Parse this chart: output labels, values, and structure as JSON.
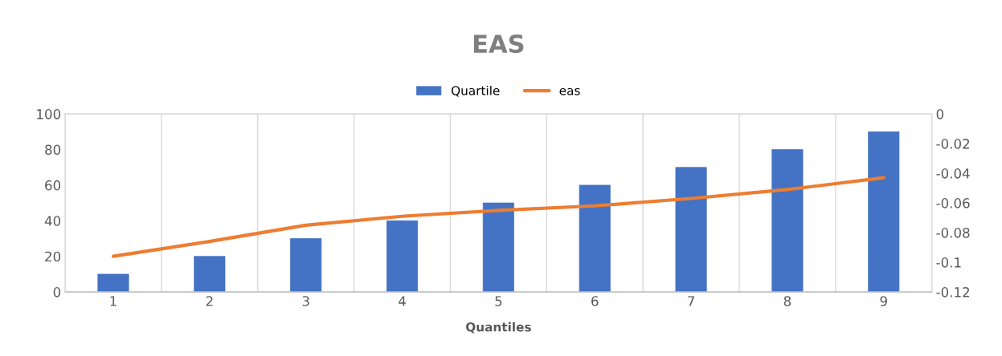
{
  "chart_data": {
    "type": "bar",
    "title": "EAS",
    "xlabel": "Quantiles",
    "categories": [
      "1",
      "2",
      "3",
      "4",
      "5",
      "6",
      "7",
      "8",
      "9"
    ],
    "series": [
      {
        "name": "Quartile",
        "color": "#4472c4",
        "values": [
          10,
          20,
          30,
          40,
          50,
          60,
          70,
          80,
          90
        ]
      },
      {
        "name": "eas",
        "type": "line",
        "axis": "y2",
        "color": "#ed7d31",
        "values": [
          -0.096,
          -0.086,
          -0.075,
          -0.069,
          -0.065,
          -0.062,
          -0.057,
          -0.051,
          -0.043
        ]
      }
    ],
    "ylim": [
      0,
      100
    ],
    "yticks": [
      0,
      20,
      40,
      60,
      80,
      100
    ],
    "y2lim": [
      -0.12,
      0
    ],
    "y2ticks": [
      0,
      -0.02,
      -0.04,
      -0.06,
      -0.08,
      -0.1,
      -0.12
    ],
    "grid": "x",
    "legend": "top",
    "marker": "none",
    "line_style": "solid"
  }
}
